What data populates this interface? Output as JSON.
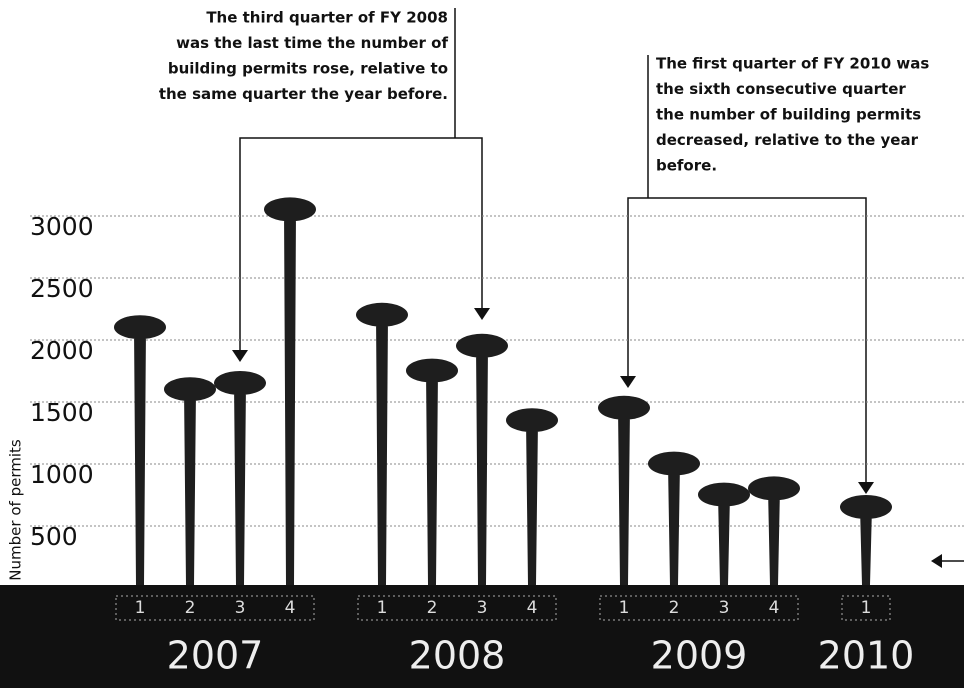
{
  "chart_data": {
    "type": "nail-bar",
    "y_label": "Number of permits",
    "ylim": [
      0,
      3250
    ],
    "yticks": [
      500,
      1000,
      1500,
      2000,
      2500,
      3000
    ],
    "grid": true,
    "color": "#1e1e1e",
    "groups": [
      {
        "name": "2007",
        "categories": [
          "1",
          "2",
          "3",
          "4"
        ],
        "values": [
          2200,
          1700,
          1750,
          3150
        ]
      },
      {
        "name": "2008",
        "categories": [
          "1",
          "2",
          "3",
          "4"
        ],
        "values": [
          2300,
          1850,
          2050,
          1450
        ]
      },
      {
        "name": "2009",
        "categories": [
          "1",
          "2",
          "3",
          "4"
        ],
        "values": [
          1550,
          1100,
          850,
          900
        ]
      },
      {
        "name": "2010",
        "categories": [
          "1"
        ],
        "values": [
          750
        ]
      }
    ],
    "annotations": [
      [
        "The third quarter of FY 2008",
        "was the last time the number of",
        "building permits rose, relative to",
        "the same quarter the year before."
      ],
      [
        "The first quarter of FY 2010 was",
        "the sixth consecutive quarter",
        "the number of building permits",
        "decreased, relative to the year",
        "before."
      ]
    ]
  }
}
